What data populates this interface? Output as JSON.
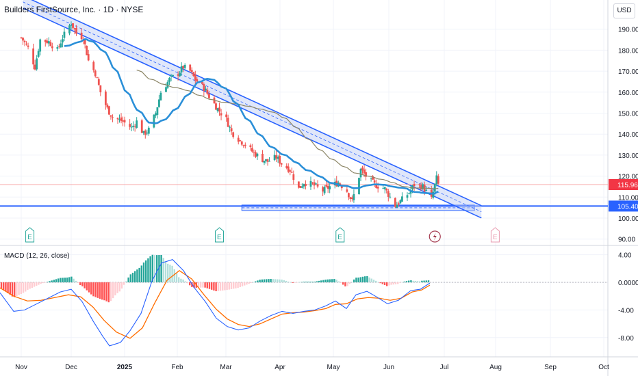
{
  "header": {
    "title": "Builders FirstSource, Inc. · 1D · NYSE",
    "currency": "USD"
  },
  "macd_panel": {
    "label": "MACD (12, 26, close)"
  },
  "colors": {
    "up": "#26a69a",
    "down": "#ef5350",
    "channel": "#2962ff",
    "channel_fill": "#bbcaf5",
    "ma_fast": "#2a8fd8",
    "ma_slow": "#8b8566",
    "macd_line": "#2962ff",
    "signal_line": "#ff6d00",
    "price_line": "#f7a8a8"
  },
  "chart_data": [
    {
      "type": "candlestick",
      "title": "Builders FirstSource, Inc. · 1D · NYSE",
      "y_ticks": [
        "90.00",
        "100.00",
        "110.00",
        "120.00",
        "130.00",
        "140.00",
        "150.00",
        "160.00",
        "170.00",
        "180.00",
        "190.00"
      ],
      "x_ticks": [
        "Nov",
        "Dec",
        "2025",
        "Feb",
        "Mar",
        "Apr",
        "May",
        "Jun",
        "Jul",
        "Aug",
        "Sep",
        "Oct"
      ],
      "ylim": [
        84,
        195
      ],
      "last_price": "115.96",
      "support_level": "105.40",
      "moving_averages": [
        "fast",
        "slow"
      ],
      "trendline_channel": {
        "start": [
          "2024-10-29",
          203
        ],
        "end": [
          "2025-07-22",
          103
        ]
      },
      "support_channel": {
        "start": "2025-03-05",
        "end": "2025-07-18",
        "level": 105.4
      },
      "earnings_markers": [
        {
          "label": "E",
          "date": "2024-11-02"
        },
        {
          "label": "E",
          "date": "2025-02-20"
        },
        {
          "label": "E",
          "date": "2025-05-01"
        },
        {
          "label": "E",
          "date": "2025-07-30"
        }
      ],
      "dividend_marker": {
        "date": "2025-06-25"
      },
      "close_series": [
        [
          "2024-10-28",
          186
        ],
        [
          "2024-11-01",
          181
        ],
        [
          "2024-11-05",
          172
        ],
        [
          "2024-11-08",
          185
        ],
        [
          "2024-11-13",
          184
        ],
        [
          "2024-11-18",
          180
        ],
        [
          "2024-11-21",
          186
        ],
        [
          "2024-11-26",
          193
        ],
        [
          "2024-11-29",
          188
        ],
        [
          "2024-12-03",
          186
        ],
        [
          "2024-12-06",
          175
        ],
        [
          "2024-12-10",
          169
        ],
        [
          "2024-12-13",
          160
        ],
        [
          "2024-12-17",
          152
        ],
        [
          "2024-12-20",
          148
        ],
        [
          "2024-12-26",
          146
        ],
        [
          "2024-12-31",
          143
        ],
        [
          "2025-01-03",
          146
        ],
        [
          "2025-01-07",
          140
        ],
        [
          "2025-01-10",
          142
        ],
        [
          "2025-01-14",
          150
        ],
        [
          "2025-01-17",
          160
        ],
        [
          "2025-01-22",
          166
        ],
        [
          "2025-01-27",
          169
        ],
        [
          "2025-01-30",
          172
        ],
        [
          "2025-02-03",
          170
        ],
        [
          "2025-02-06",
          166
        ],
        [
          "2025-02-11",
          162
        ],
        [
          "2025-02-14",
          158
        ],
        [
          "2025-02-19",
          152
        ],
        [
          "2025-02-24",
          147
        ],
        [
          "2025-02-27",
          141
        ],
        [
          "2025-03-04",
          137
        ],
        [
          "2025-03-07",
          135
        ],
        [
          "2025-03-12",
          131
        ],
        [
          "2025-03-17",
          128
        ],
        [
          "2025-03-20",
          127
        ],
        [
          "2025-03-25",
          129
        ],
        [
          "2025-03-28",
          126
        ],
        [
          "2025-04-02",
          123
        ],
        [
          "2025-04-07",
          114
        ],
        [
          "2025-04-10",
          117
        ],
        [
          "2025-04-15",
          116
        ],
        [
          "2025-04-21",
          113
        ],
        [
          "2025-04-25",
          115
        ],
        [
          "2025-04-30",
          117
        ],
        [
          "2025-05-05",
          113
        ],
        [
          "2025-05-08",
          108
        ],
        [
          "2025-05-13",
          123
        ],
        [
          "2025-05-16",
          120
        ],
        [
          "2025-05-21",
          116
        ],
        [
          "2025-05-27",
          114
        ],
        [
          "2025-06-02",
          106
        ],
        [
          "2025-06-05",
          108
        ],
        [
          "2025-06-10",
          112
        ],
        [
          "2025-06-13",
          116
        ],
        [
          "2025-06-18",
          115
        ],
        [
          "2025-06-23",
          109
        ],
        [
          "2025-06-26",
          119
        ],
        [
          "2025-06-27",
          116
        ]
      ]
    },
    {
      "type": "bar+line",
      "title": "MACD (12, 26, close)",
      "y_ticks": [
        "4.00",
        "0.0000",
        "-4.00",
        "-8.00"
      ],
      "ylim": [
        -10.2,
        5.8
      ],
      "series": [
        {
          "name": "MACD"
        },
        {
          "name": "Signal"
        },
        {
          "name": "Histogram"
        }
      ],
      "macd": [
        [
          0,
          -1.5
        ],
        [
          20,
          -4.2
        ],
        [
          36,
          -4.0
        ],
        [
          52,
          -3.2
        ],
        [
          70,
          -2.3
        ],
        [
          88,
          -1.4
        ],
        [
          104,
          -1.0
        ],
        [
          120,
          -2.8
        ],
        [
          136,
          -5.6
        ],
        [
          150,
          -7.8
        ],
        [
          160,
          -9.2
        ],
        [
          176,
          -8.7
        ],
        [
          190,
          -7.0
        ],
        [
          206,
          -4.5
        ],
        [
          222,
          0.2
        ],
        [
          236,
          2.8
        ],
        [
          252,
          3.3
        ],
        [
          268,
          1.7
        ],
        [
          284,
          -0.8
        ],
        [
          300,
          -2.8
        ],
        [
          316,
          -5.2
        ],
        [
          332,
          -6.4
        ],
        [
          348,
          -6.9
        ],
        [
          364,
          -6.6
        ],
        [
          380,
          -5.6
        ],
        [
          396,
          -4.8
        ],
        [
          412,
          -4.2
        ],
        [
          428,
          -4.5
        ],
        [
          444,
          -4.2
        ],
        [
          460,
          -4.0
        ],
        [
          476,
          -3.4
        ],
        [
          490,
          -2.7
        ],
        [
          506,
          -3.8
        ],
        [
          520,
          -1.8
        ],
        [
          536,
          -1.3
        ],
        [
          550,
          -2.1
        ],
        [
          566,
          -3.1
        ],
        [
          582,
          -2.6
        ],
        [
          600,
          -1.2
        ],
        [
          614,
          -1.0
        ],
        [
          628,
          -0.1
        ]
      ],
      "signal": [
        [
          0,
          -0.8
        ],
        [
          20,
          -2.0
        ],
        [
          40,
          -2.7
        ],
        [
          60,
          -2.6
        ],
        [
          80,
          -2.2
        ],
        [
          100,
          -1.8
        ],
        [
          118,
          -2.1
        ],
        [
          136,
          -3.6
        ],
        [
          152,
          -5.5
        ],
        [
          170,
          -7.2
        ],
        [
          190,
          -8.1
        ],
        [
          208,
          -6.6
        ],
        [
          226,
          -3.0
        ],
        [
          244,
          0.3
        ],
        [
          262,
          1.7
        ],
        [
          280,
          0.5
        ],
        [
          298,
          -1.8
        ],
        [
          316,
          -3.9
        ],
        [
          332,
          -5.3
        ],
        [
          348,
          -6.1
        ],
        [
          364,
          -6.4
        ],
        [
          380,
          -6.0
        ],
        [
          396,
          -5.3
        ],
        [
          412,
          -4.6
        ],
        [
          428,
          -4.4
        ],
        [
          444,
          -4.3
        ],
        [
          460,
          -4.1
        ],
        [
          476,
          -3.8
        ],
        [
          490,
          -3.2
        ],
        [
          506,
          -3.1
        ],
        [
          522,
          -2.4
        ],
        [
          538,
          -2.2
        ],
        [
          554,
          -2.3
        ],
        [
          570,
          -2.6
        ],
        [
          586,
          -2.3
        ],
        [
          602,
          -1.4
        ],
        [
          616,
          -1.1
        ],
        [
          628,
          -0.4
        ]
      ]
    }
  ]
}
